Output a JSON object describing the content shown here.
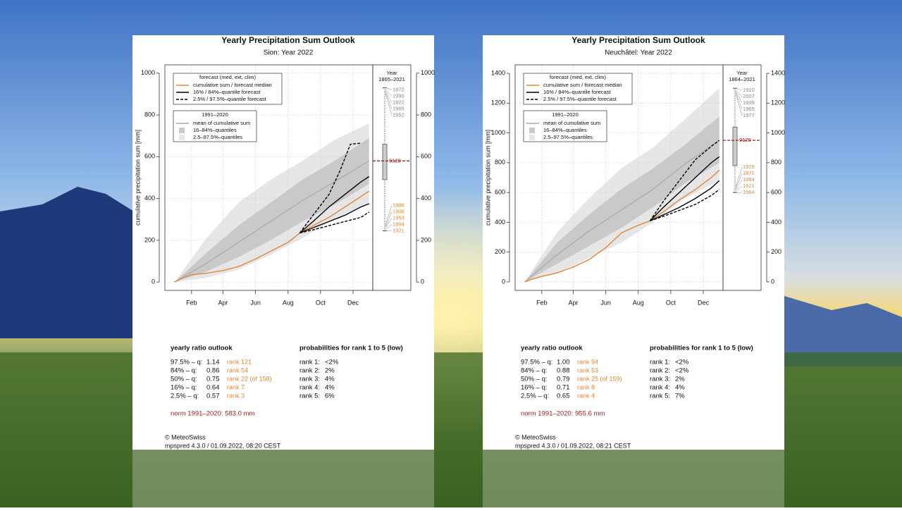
{
  "chart_data": [
    {
      "type": "line",
      "title": "Yearly Precipitation Sum Outlook",
      "subtitle": "Sion: Year 2022",
      "y_label": "cumulative precipitation sum [mm]",
      "xlim": [
        -18,
        372
      ],
      "ylim": [
        -40,
        1040
      ],
      "xticks": [
        {
          "value": 32,
          "label": "Feb"
        },
        {
          "value": 91,
          "label": "Apr"
        },
        {
          "value": 152,
          "label": "Jun"
        },
        {
          "value": 213,
          "label": "Aug"
        },
        {
          "value": 274,
          "label": "Oct"
        },
        {
          "value": 335,
          "label": "Dec"
        }
      ],
      "yticks": [
        0,
        200,
        400,
        600,
        800,
        1000
      ],
      "grid": true,
      "legend_titles": [
        "forecast (med, ext, clim)",
        "1991–2020"
      ],
      "forecast_series": [
        {
          "name": "cumulative sum / forecast median",
          "color": "#e0883a",
          "dash": false,
          "lines": [
            {
              "x": [
                0,
                15,
                32,
                60,
                91,
                121,
                152,
                182,
                213,
                235
              ],
              "values": [
                0,
                20,
                35,
                42,
                55,
                75,
                110,
                150,
                190,
                235
              ]
            },
            {
              "x": [
                235,
                260,
                290,
                320,
                350,
                365
              ],
              "values": [
                235,
                270,
                310,
                360,
                410,
                435
              ]
            }
          ]
        },
        {
          "name": "16% / 84%–quantile forecast",
          "color": "#000000",
          "dash": false,
          "lines": [
            {
              "x": [
                235,
                260,
                290,
                320,
                350,
                365
              ],
              "values": [
                235,
                290,
                360,
                420,
                480,
                505
              ]
            },
            {
              "x": [
                235,
                260,
                290,
                320,
                350,
                365
              ],
              "values": [
                235,
                260,
                290,
                320,
                360,
                375
              ]
            }
          ]
        },
        {
          "name": "2.5% / 97.5%–quantile forecast",
          "color": "#000000",
          "dash": true,
          "lines": [
            {
              "x": [
                235,
                260,
                290,
                310,
                330,
                350
              ],
              "values": [
                235,
                320,
                420,
                530,
                660,
                665
              ]
            },
            {
              "x": [
                235,
                260,
                290,
                320,
                350,
                365
              ],
              "values": [
                235,
                250,
                270,
                290,
                310,
                335
              ]
            }
          ]
        }
      ],
      "climatology": [
        {
          "name": "mean of cumulative sum",
          "color": "#a8a8a8",
          "x": [
            0,
            60,
            120,
            180,
            240,
            300,
            365
          ],
          "values": [
            0,
            90,
            190,
            290,
            390,
            480,
            580
          ]
        }
      ],
      "bands": [
        {
          "name": "16–84%–quantiles",
          "color": "#c9c9c9",
          "x": [
            0,
            60,
            120,
            180,
            240,
            300,
            365
          ],
          "lower": [
            0,
            50,
            120,
            200,
            290,
            370,
            470
          ],
          "upper": [
            0,
            140,
            270,
            380,
            490,
            580,
            690
          ]
        },
        {
          "name": "2.5–97.5%–quantiles",
          "color": "#e6e6e6",
          "x": [
            0,
            60,
            120,
            180,
            240,
            300,
            365
          ],
          "lower": [
            0,
            20,
            60,
            130,
            210,
            300,
            380
          ],
          "upper": [
            0,
            210,
            380,
            490,
            580,
            680,
            760
          ]
        }
      ],
      "box_header": [
        "Year",
        "1865–2021"
      ],
      "box": {
        "whisker_low": 245,
        "q_low": 490,
        "median": 580,
        "q_high": 660,
        "whisker_high": 930,
        "label": "9120"
      },
      "rank_years_high": [
        "1872",
        "1990",
        "1922",
        "1965",
        "1952"
      ],
      "rank_years_low": [
        "1886",
        "1906",
        "1953",
        "1894",
        "1921"
      ],
      "ratio_title": "yearly ratio outlook",
      "ratio_rows": [
        [
          "97.5% – q:",
          "1.14",
          "rank 121"
        ],
        [
          "84% – q:",
          "0.86",
          "rank 54"
        ],
        [
          "50% – q:",
          "0.75",
          "rank 22 (of 158)"
        ],
        [
          "16% – q:",
          "0.64",
          "rank 7"
        ],
        [
          "2.5% – q:",
          "0.57",
          "rank 3"
        ]
      ],
      "prob_title": "probabilities for rank 1 to 5 (low)",
      "prob_rows": [
        [
          "rank 1:",
          "<2%"
        ],
        [
          "rank 2:",
          "2%"
        ],
        [
          "rank 3:",
          "4%"
        ],
        [
          "rank 4:",
          "4%"
        ],
        [
          "rank 5:",
          "6%"
        ]
      ],
      "norm": "norm 1991–2020: 583.0 mm",
      "copyright": "© MeteoSwiss",
      "version": "mpspred 4.3.0 / 01.09.2022, 08:20 CEST"
    },
    {
      "type": "line",
      "title": "Yearly Precipitation Sum Outlook",
      "subtitle": "Neuchâtel: Year 2022",
      "y_label": "cumulative precipitation sum [mm]",
      "xlim": [
        -18,
        372
      ],
      "ylim": [
        -57,
        1457
      ],
      "xticks": [
        {
          "value": 32,
          "label": "Feb"
        },
        {
          "value": 91,
          "label": "Apr"
        },
        {
          "value": 152,
          "label": "Jun"
        },
        {
          "value": 213,
          "label": "Aug"
        },
        {
          "value": 274,
          "label": "Oct"
        },
        {
          "value": 335,
          "label": "Dec"
        }
      ],
      "yticks": [
        0,
        200,
        400,
        600,
        800,
        1000,
        1200,
        1400
      ],
      "grid": true,
      "legend_titles": [
        "forecast (med, ext, clim)",
        "1991–2020"
      ],
      "forecast_series": [
        {
          "name": "cumulative sum / forecast median",
          "color": "#e0883a",
          "dash": false,
          "lines": [
            {
              "x": [
                0,
                15,
                30,
                60,
                91,
                121,
                152,
                182,
                213,
                235
              ],
              "values": [
                0,
                20,
                35,
                60,
                100,
                150,
                230,
                330,
                380,
                410
              ]
            },
            {
              "x": [
                235,
                260,
                290,
                320,
                350,
                365
              ],
              "values": [
                410,
                470,
                550,
                620,
                700,
                750
              ]
            }
          ]
        },
        {
          "name": "16% / 84%–quantile forecast",
          "color": "#000000",
          "dash": false,
          "lines": [
            {
              "x": [
                235,
                260,
                290,
                320,
                350,
                365
              ],
              "values": [
                410,
                500,
                600,
                700,
                800,
                840
              ]
            },
            {
              "x": [
                235,
                260,
                290,
                320,
                350,
                365
              ],
              "values": [
                410,
                450,
                500,
                560,
                630,
                680
              ]
            }
          ]
        },
        {
          "name": "2.5% / 97.5%–quantile forecast",
          "color": "#000000",
          "dash": true,
          "lines": [
            {
              "x": [
                235,
                260,
                290,
                320,
                350,
                365
              ],
              "values": [
                410,
                540,
                680,
                820,
                910,
                950
              ]
            },
            {
              "x": [
                235,
                260,
                290,
                320,
                350,
                365
              ],
              "values": [
                410,
                440,
                480,
                520,
                580,
                620
              ]
            }
          ]
        }
      ],
      "climatology": [
        {
          "name": "mean of cumulative sum",
          "color": "#a8a8a8",
          "x": [
            0,
            60,
            120,
            180,
            240,
            300,
            365
          ],
          "values": [
            0,
            180,
            340,
            480,
            620,
            790,
            950
          ]
        }
      ],
      "bands": [
        {
          "name": "16–84%–quantiles",
          "color": "#c9c9c9",
          "x": [
            0,
            60,
            120,
            180,
            240,
            300,
            365
          ],
          "lower": [
            0,
            120,
            240,
            360,
            500,
            660,
            800
          ],
          "upper": [
            0,
            260,
            450,
            620,
            760,
            920,
            1110
          ]
        },
        {
          "name": "2.5–97.5%–quantiles",
          "color": "#e6e6e6",
          "x": [
            0,
            60,
            120,
            180,
            240,
            300,
            365
          ],
          "lower": [
            0,
            60,
            160,
            260,
            400,
            560,
            680
          ],
          "upper": [
            0,
            330,
            560,
            760,
            900,
            1090,
            1300
          ]
        }
      ],
      "box_header": [
        "Year",
        "1864–2021"
      ],
      "box": {
        "whisker_low": 600,
        "q_low": 780,
        "median": 950,
        "q_high": 1040,
        "whisker_high": 1300,
        "label": "9120"
      },
      "rank_years_high": [
        "1910",
        "2007",
        "1939",
        "1965",
        "1977"
      ],
      "rank_years_low": [
        "1929",
        "1871",
        "1884",
        "1921",
        "1964"
      ],
      "ratio_title": "yearly ratio outlook",
      "ratio_rows": [
        [
          "97.5% – q:",
          "1.00",
          "rank 94"
        ],
        [
          "84% – q:",
          "0.88",
          "rank 53"
        ],
        [
          "50% – q:",
          "0.79",
          "rank 25 (of 159)"
        ],
        [
          "16% – q:",
          "0.71",
          "rank 8"
        ],
        [
          "2.5% – q:",
          "0.65",
          "rank 4"
        ]
      ],
      "prob_title": "probabilities for rank 1 to 5 (low)",
      "prob_rows": [
        [
          "rank 1:",
          "<2%"
        ],
        [
          "rank 2:",
          "<2%"
        ],
        [
          "rank 3:",
          "2%"
        ],
        [
          "rank 4:",
          "4%"
        ],
        [
          "rank 5:",
          "7%"
        ]
      ],
      "norm": "norm 1991–2020: 955.6 mm",
      "copyright": "© MeteoSwiss",
      "version": "mpspred 4.3.0 / 01.09.2022, 08:21 CEST"
    }
  ]
}
